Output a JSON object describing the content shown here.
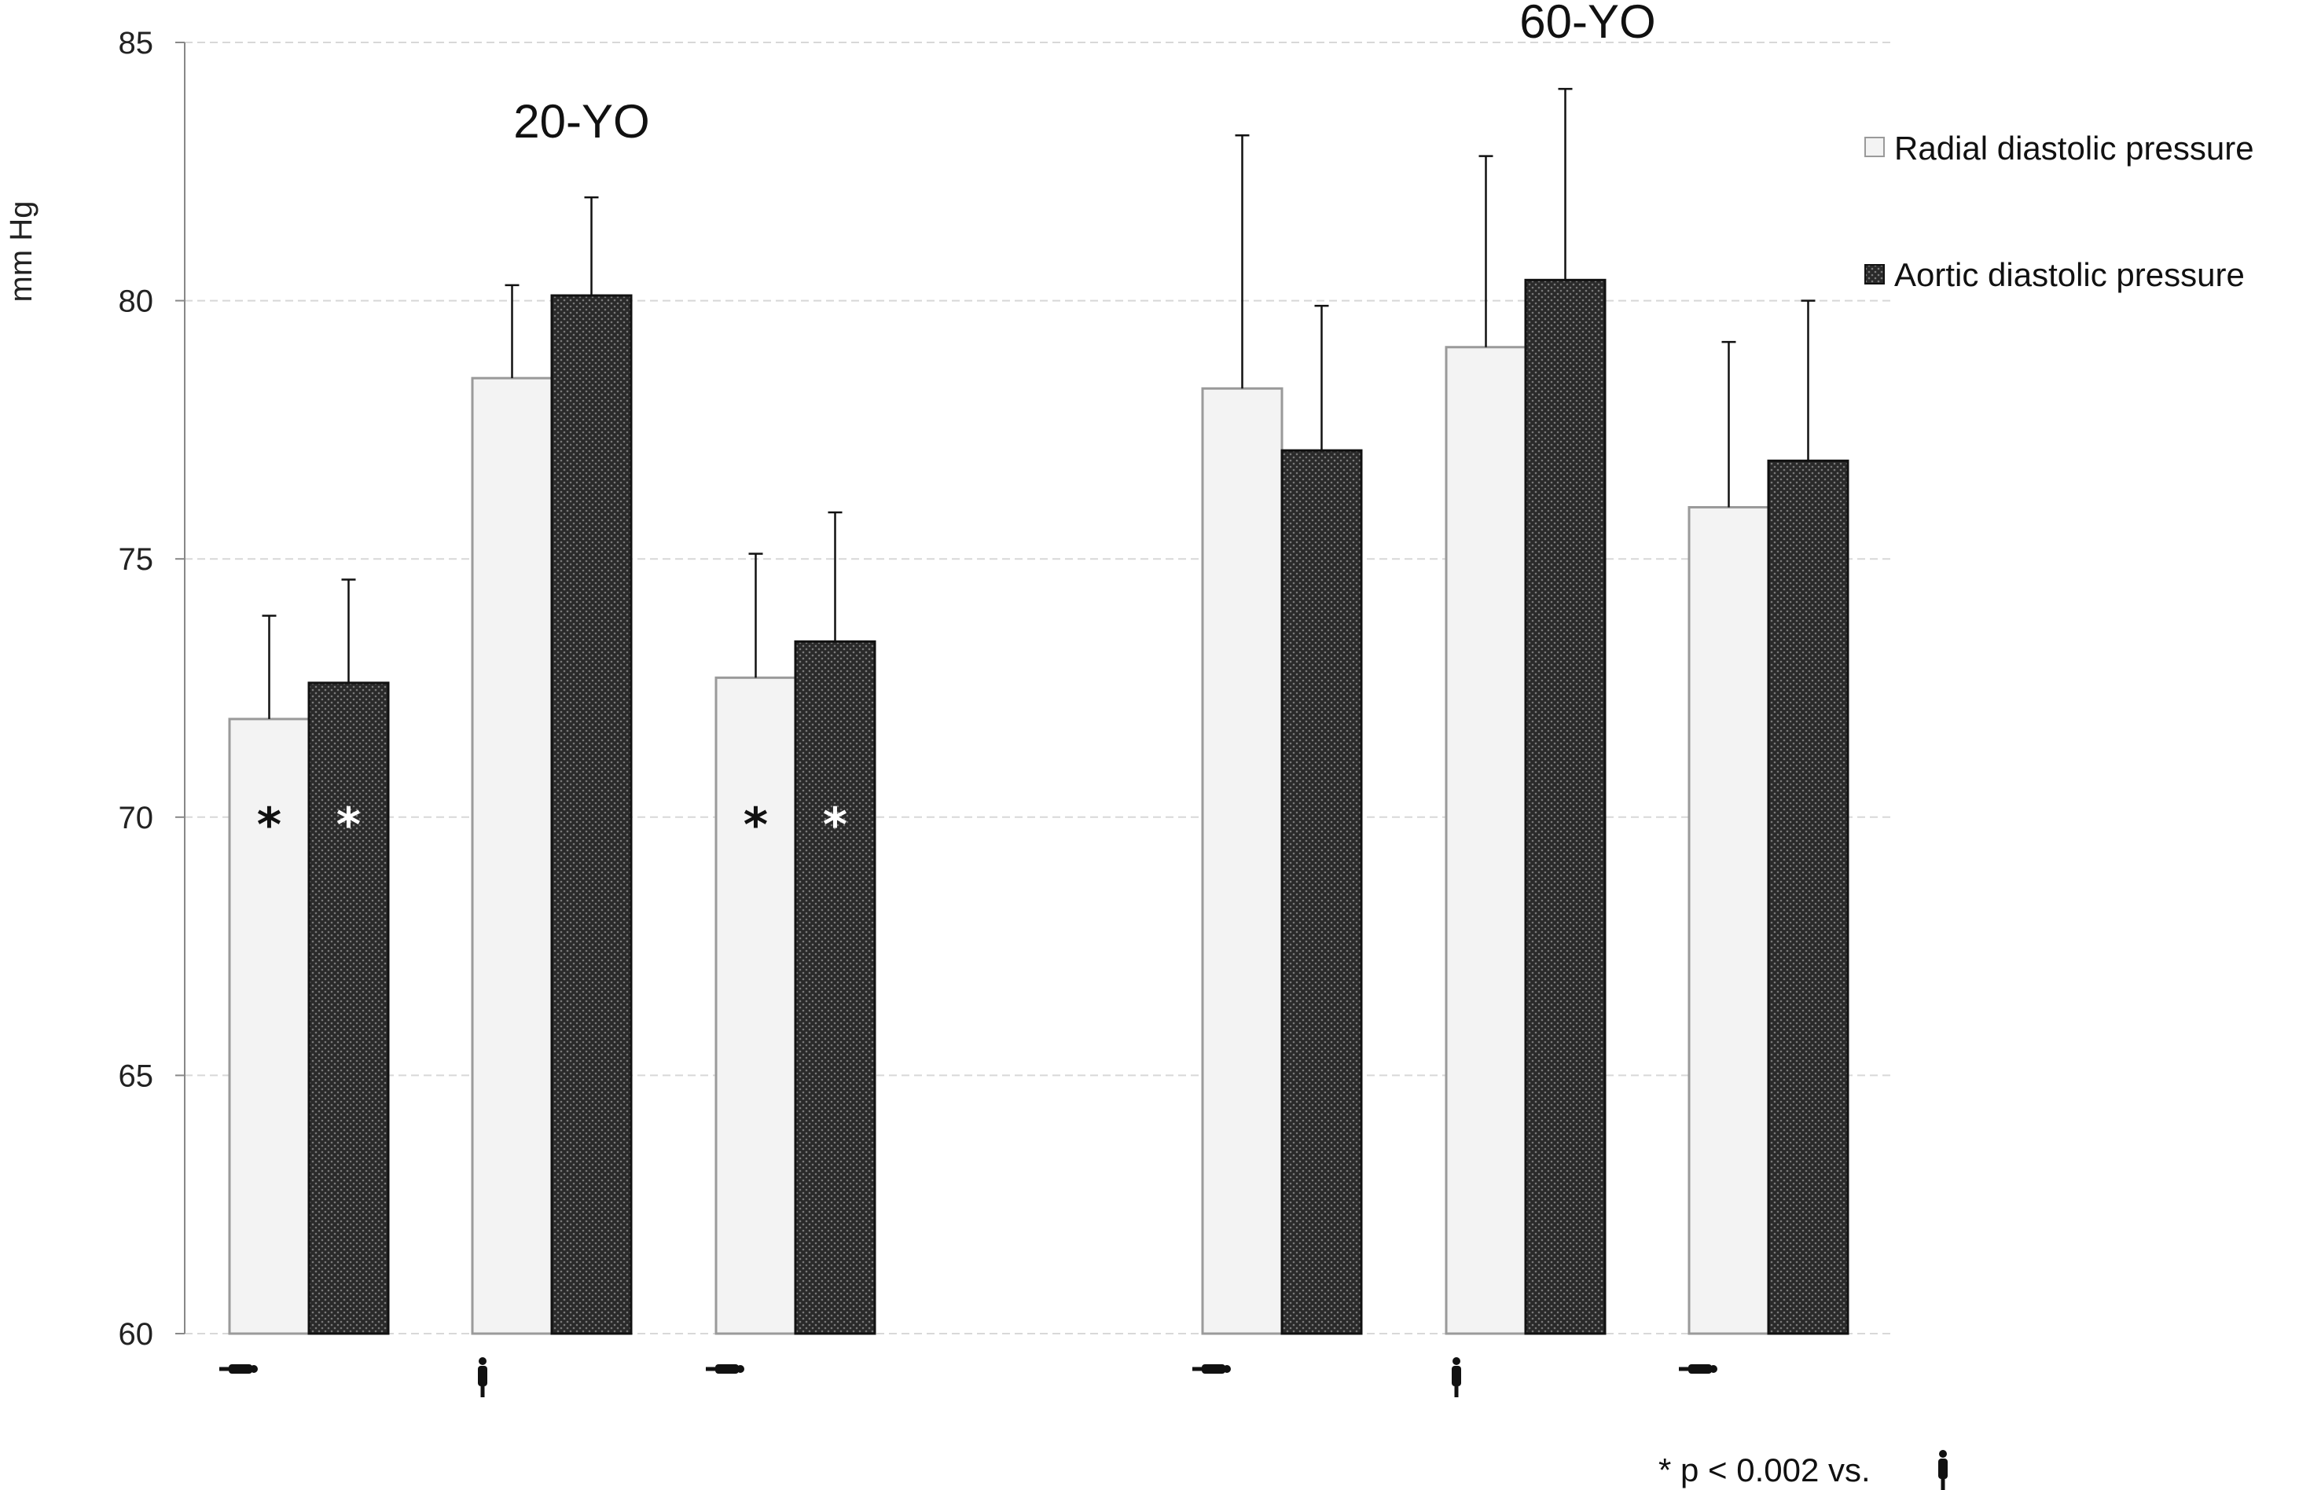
{
  "chart_data": {
    "type": "bar",
    "ylabel": "mm Hg",
    "ylim": [
      60,
      85
    ],
    "yticks": [
      60,
      65,
      70,
      75,
      80,
      85
    ],
    "grid": true,
    "legend_position": "top-right",
    "groups": [
      {
        "label": "20-YO",
        "categories": [
          "supine",
          "standing",
          "supine"
        ],
        "series": [
          {
            "name": "Radial diastolic pressure",
            "values": [
              71.9,
              78.5,
              72.7
            ],
            "errors": [
              2.0,
              1.8,
              2.4
            ],
            "significant": [
              true,
              false,
              true
            ]
          },
          {
            "name": "Aortic diastolic pressure",
            "values": [
              72.6,
              80.1,
              73.4
            ],
            "errors": [
              2.0,
              1.9,
              2.5
            ],
            "significant": [
              true,
              false,
              true
            ]
          }
        ]
      },
      {
        "label": "60-YO",
        "categories": [
          "supine",
          "standing",
          "supine"
        ],
        "series": [
          {
            "name": "Radial diastolic pressure",
            "values": [
              78.3,
              79.1,
              76.0
            ],
            "errors": [
              4.9,
              3.7,
              3.2
            ],
            "significant": [
              false,
              false,
              false
            ]
          },
          {
            "name": "Aortic diastolic pressure",
            "values": [
              77.1,
              80.4,
              76.9
            ],
            "errors": [
              2.8,
              3.7,
              3.1
            ],
            "significant": [
              false,
              false,
              false
            ]
          }
        ]
      }
    ],
    "legend": [
      "Radial diastolic pressure",
      "Aortic diastolic pressure"
    ],
    "significance_marker": "*",
    "footnote": "* p < 0.002 vs."
  },
  "colors": {
    "radial_fill": "#f3f3f3",
    "radial_stroke": "#9a9a9a",
    "aortic_fill": "#2a2a2a",
    "aortic_pattern": "#6a6a6a",
    "grid": "#d8d8d8",
    "axis": "#888888"
  },
  "icons": {
    "supine": "lying-person-icon",
    "standing": "standing-person-icon"
  }
}
